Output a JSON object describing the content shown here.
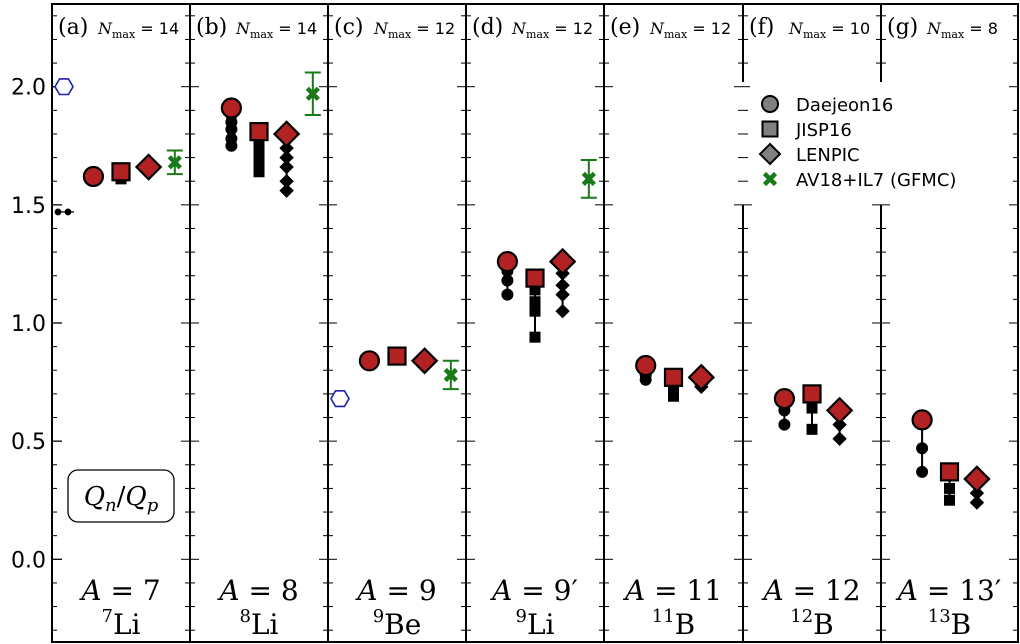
{
  "chart_data": {
    "type": "scatter",
    "ylim": [
      -0.35,
      2.35
    ],
    "yticks": [
      "0.0",
      "0.5",
      "1.0",
      "1.5",
      "2.0"
    ],
    "ytick_values": [
      0.0,
      0.5,
      1.0,
      1.5,
      2.0
    ],
    "ratio_label": {
      "main": "Q",
      "sub_n": "n",
      "slash": "/",
      "sub_p": "p"
    },
    "legend": {
      "entries": [
        {
          "name": "Daejeon16",
          "marker": "circle"
        },
        {
          "name": "JISP16",
          "marker": "square"
        },
        {
          "name": "LENPIC",
          "marker": "diamond"
        },
        {
          "name": "AV18+IL7 (GFMC)",
          "marker": "cross"
        }
      ]
    },
    "colors": {
      "accent": "#b22222",
      "gfmc": "#1a7a1a",
      "experiment": "#1f1fb0",
      "ladder": "#000000"
    },
    "panels": [
      {
        "tag": "(a)",
        "nmax_sym": "N",
        "nmax_sub": "max",
        "nmax_val": "= 14",
        "a_label": "A = 7",
        "nucleus_mass": "7",
        "nucleus_elem": "Li",
        "daejeon16": {
          "value": 1.62,
          "ladder": [
            1.61
          ]
        },
        "jisp16": {
          "value": 1.64,
          "ladder": [
            1.61
          ]
        },
        "lenpic": {
          "value": 1.66,
          "ladder": []
        },
        "gfmc": {
          "value": 1.68,
          "err": 0.05
        },
        "experiment": [
          2.0
        ],
        "extra_points": [
          1.47,
          1.47
        ]
      },
      {
        "tag": "(b)",
        "nmax_sym": "N",
        "nmax_sub": "max",
        "nmax_val": "= 14",
        "a_label": "A = 8",
        "nucleus_mass": "8",
        "nucleus_elem": "Li",
        "daejeon16": {
          "value": 1.91,
          "ladder": [
            1.88,
            1.85,
            1.82,
            1.78,
            1.75
          ]
        },
        "jisp16": {
          "value": 1.81,
          "ladder": [
            1.76,
            1.73,
            1.7,
            1.67,
            1.64
          ]
        },
        "lenpic": {
          "value": 1.8,
          "ladder": [
            1.74,
            1.7,
            1.66,
            1.6,
            1.56
          ]
        },
        "gfmc": {
          "value": 1.97,
          "err": 0.09
        },
        "experiment": [],
        "extra_points": []
      },
      {
        "tag": "(c)",
        "nmax_sym": "N",
        "nmax_sub": "max",
        "nmax_val": "= 12",
        "a_label": "A = 9",
        "nucleus_mass": "9",
        "nucleus_elem": "Be",
        "daejeon16": {
          "value": 0.84,
          "ladder": []
        },
        "jisp16": {
          "value": 0.86,
          "ladder": []
        },
        "lenpic": {
          "value": 0.84,
          "ladder": []
        },
        "gfmc": {
          "value": 0.78,
          "err": 0.06
        },
        "experiment": [
          0.68
        ],
        "extra_points": []
      },
      {
        "tag": "(d)",
        "nmax_sym": "N",
        "nmax_sub": "max",
        "nmax_val": "= 12",
        "a_label": "A = 9′",
        "nucleus_mass": "9",
        "nucleus_elem": "Li",
        "daejeon16": {
          "value": 1.26,
          "ladder": [
            1.22,
            1.18,
            1.12
          ]
        },
        "jisp16": {
          "value": 1.19,
          "ladder": [
            1.14,
            1.09,
            1.05,
            0.94
          ]
        },
        "lenpic": {
          "value": 1.26,
          "ladder": [
            1.21,
            1.16,
            1.12,
            1.05
          ]
        },
        "gfmc": {
          "value": 1.61,
          "err": 0.08
        },
        "experiment": [],
        "extra_points": []
      },
      {
        "tag": "(e)",
        "nmax_sym": "N",
        "nmax_sub": "max",
        "nmax_val": "= 12",
        "a_label": "A = 11",
        "nucleus_mass": "11",
        "nucleus_elem": "B",
        "daejeon16": {
          "value": 0.82,
          "ladder": [
            0.78,
            0.76
          ]
        },
        "jisp16": {
          "value": 0.77,
          "ladder": [
            0.73,
            0.69
          ]
        },
        "lenpic": {
          "value": 0.77,
          "ladder": [
            0.74,
            0.73
          ]
        },
        "gfmc": null,
        "experiment": [],
        "extra_points": []
      },
      {
        "tag": "(f)",
        "nmax_sym": "N",
        "nmax_sub": "max",
        "nmax_val": "= 10",
        "a_label": "A = 12",
        "nucleus_mass": "12",
        "nucleus_elem": "B",
        "daejeon16": {
          "value": 0.68,
          "ladder": [
            0.63,
            0.57
          ]
        },
        "jisp16": {
          "value": 0.7,
          "ladder": [
            0.64,
            0.55
          ]
        },
        "lenpic": {
          "value": 0.63,
          "ladder": [
            0.57,
            0.51
          ]
        },
        "gfmc": null,
        "experiment": [],
        "extra_points": []
      },
      {
        "tag": "(g)",
        "nmax_sym": "N",
        "nmax_sub": "max",
        "nmax_val": "= 8",
        "a_label": "A = 13′",
        "nucleus_mass": "13",
        "nucleus_elem": "B",
        "daejeon16": {
          "value": 0.59,
          "ladder": [
            0.47,
            0.37
          ]
        },
        "jisp16": {
          "value": 0.37,
          "ladder": [
            0.3,
            0.25
          ]
        },
        "lenpic": {
          "value": 0.34,
          "ladder": [
            0.28,
            0.24
          ]
        },
        "gfmc": null,
        "experiment": [],
        "extra_points": []
      }
    ]
  }
}
